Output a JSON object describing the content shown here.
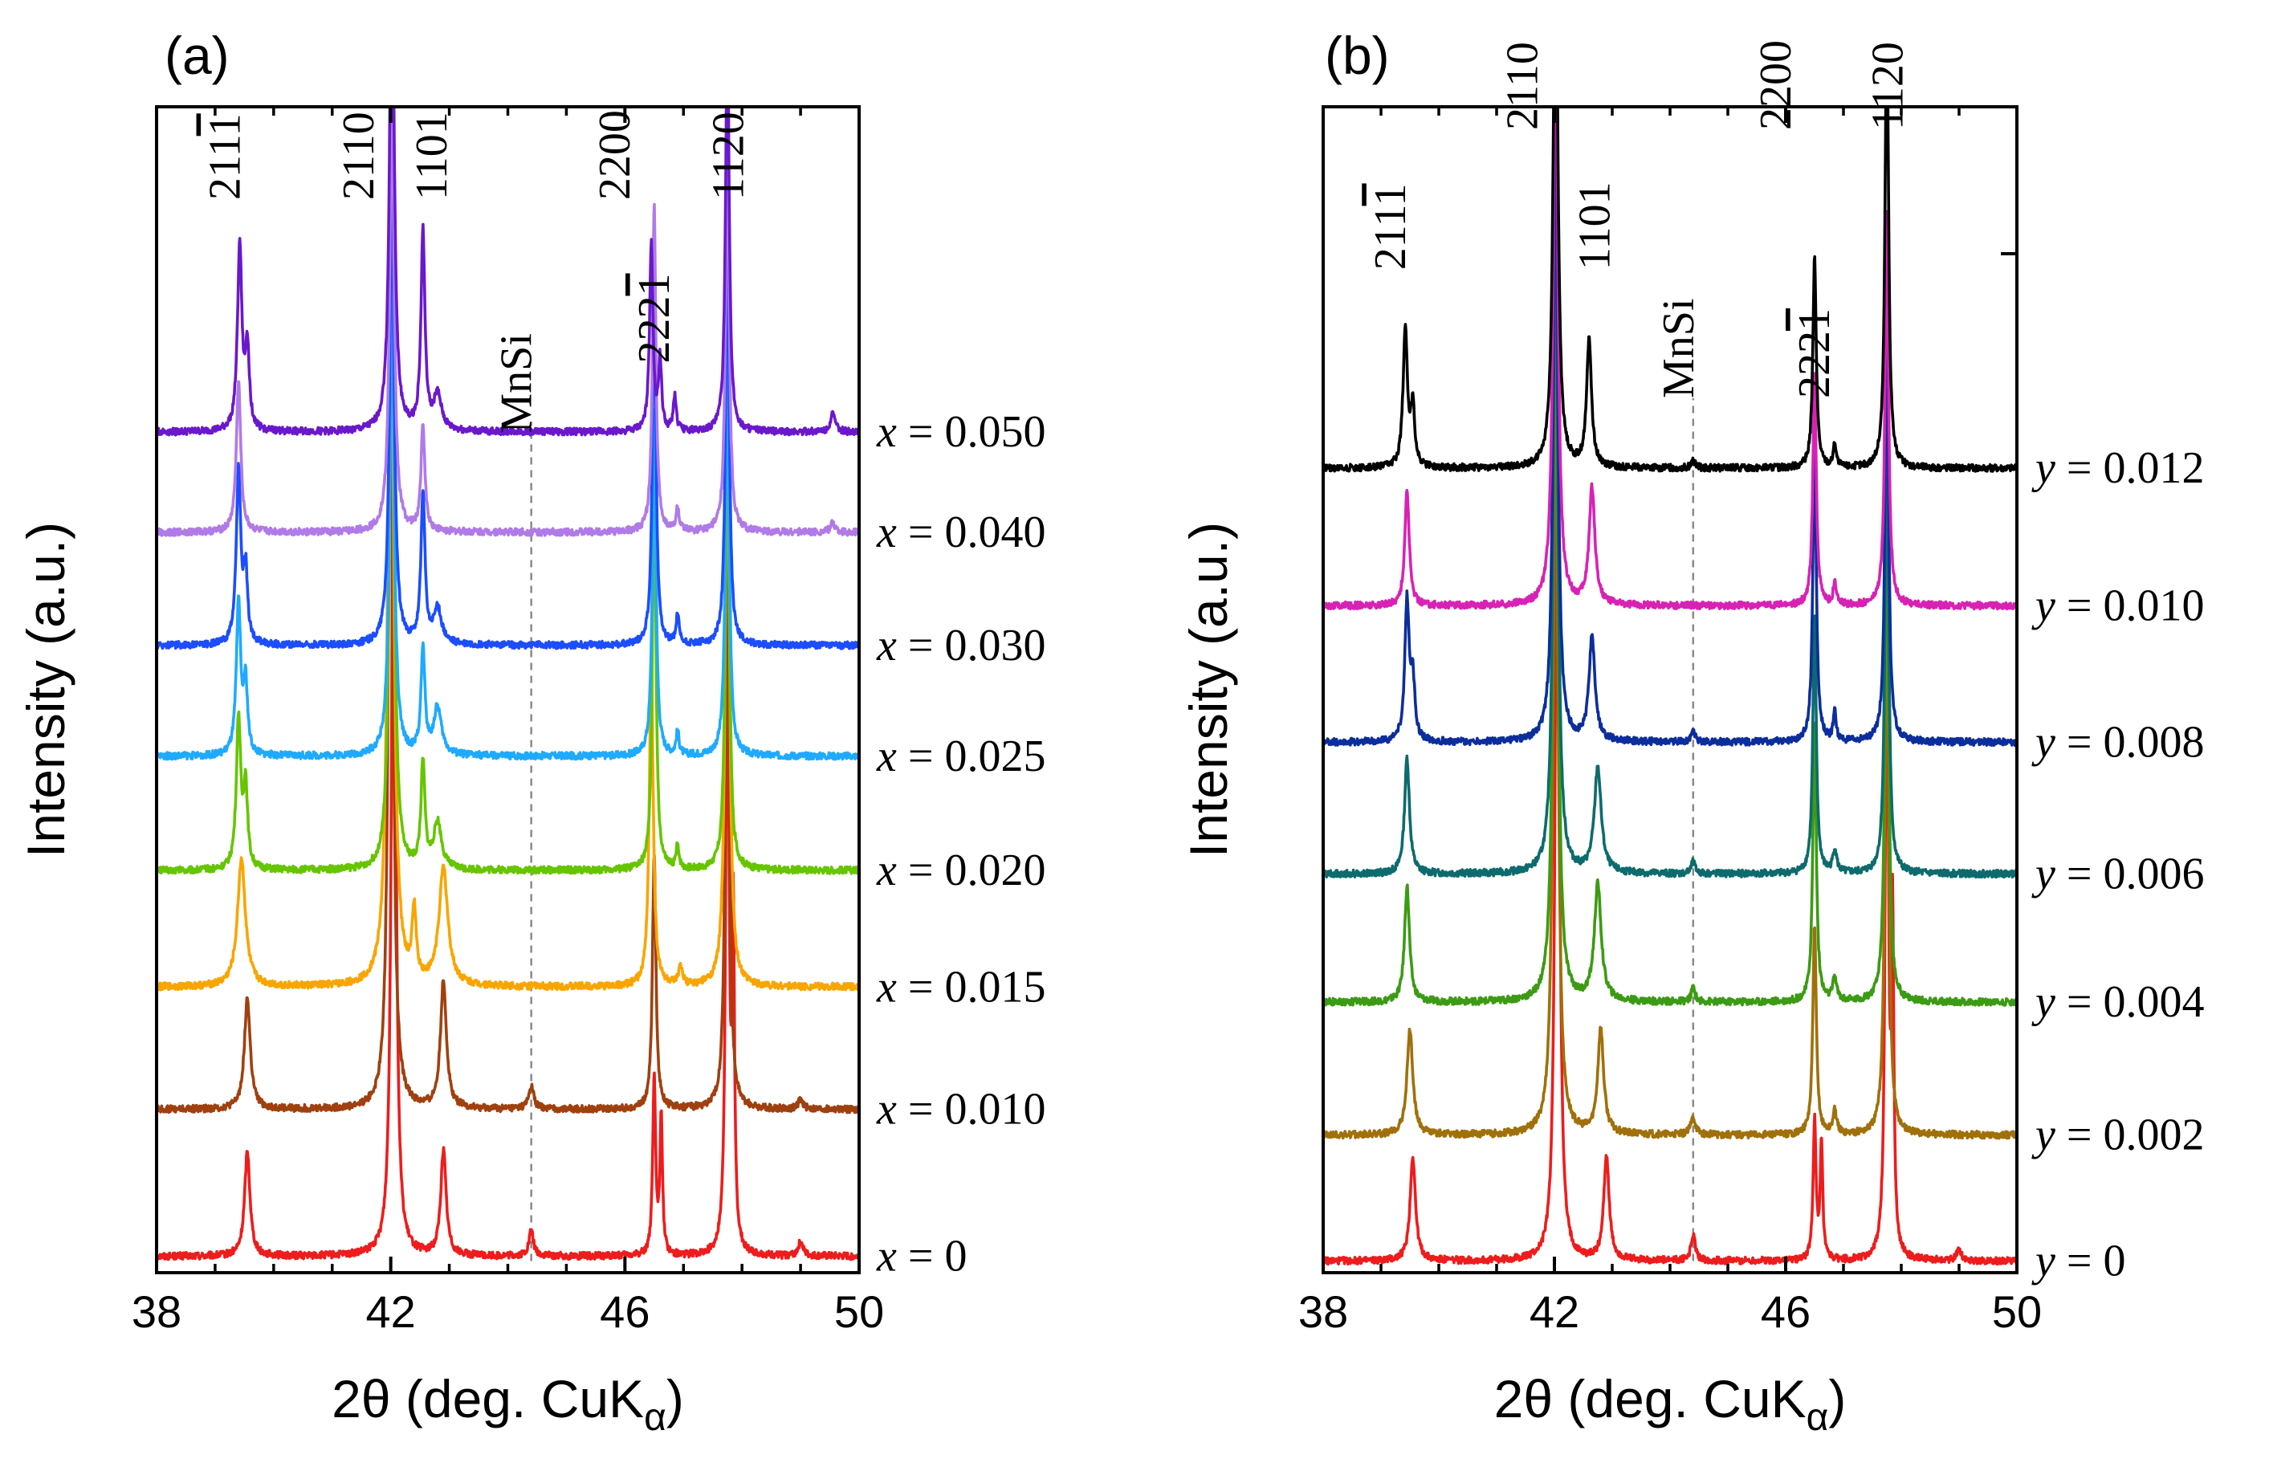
{
  "chart_data": [
    {
      "type": "line",
      "panel_label": "(a)",
      "xlabel": "2θ (deg. CuKα)",
      "xlabel_parts": {
        "main": "2θ (deg. CuK",
        "sub": "α",
        "close": ")"
      },
      "ylabel": "Intensity (a.u.)",
      "xlim": [
        38,
        50
      ],
      "ylim": [
        0,
        1
      ],
      "x_ticks": [
        38,
        42,
        46,
        50
      ],
      "x_minor_ticks": [
        39,
        40,
        41,
        43,
        44,
        45,
        47,
        48,
        49
      ],
      "series_variable": "x",
      "series": [
        {
          "name": "x = 0",
          "var": "x",
          "value": "0",
          "color": "#ee1c1c",
          "baseline": 0.014,
          "peaks": [
            [
              39.55,
              0.09,
              0.055
            ],
            [
              42.05,
              0.8,
              0.04
            ],
            [
              42.9,
              0.09,
              0.055
            ],
            [
              44.4,
              0.022,
              0.045
            ],
            [
              46.5,
              0.15,
              0.03
            ],
            [
              46.62,
              0.12,
              0.025
            ],
            [
              47.75,
              0.6,
              0.03
            ],
            [
              47.85,
              0.28,
              0.025
            ],
            [
              49.0,
              0.012,
              0.05
            ]
          ]
        },
        {
          "name": "x = 0.010",
          "var": "x",
          "value": "0.010",
          "color": "#a0400f",
          "baseline": 0.14,
          "peaks": [
            [
              39.55,
              0.095,
              0.06
            ],
            [
              42.0,
              0.74,
              0.045
            ],
            [
              42.9,
              0.11,
              0.06
            ],
            [
              44.4,
              0.02,
              0.05
            ],
            [
              46.5,
              0.22,
              0.035
            ],
            [
              47.75,
              0.58,
              0.035
            ],
            [
              49.0,
              0.008,
              0.05
            ]
          ]
        },
        {
          "name": "x = 0.015",
          "var": "x",
          "value": "0.015",
          "color": "#f9a500",
          "baseline": 0.245,
          "peaks": [
            [
              39.45,
              0.11,
              0.08
            ],
            [
              42.0,
              0.7,
              0.055
            ],
            [
              42.4,
              0.06,
              0.04
            ],
            [
              42.9,
              0.1,
              0.09
            ],
            [
              46.45,
              0.28,
              0.04
            ],
            [
              46.95,
              0.015,
              0.04
            ],
            [
              47.75,
              0.55,
              0.04
            ]
          ]
        },
        {
          "name": "x = 0.020",
          "var": "x",
          "value": "0.020",
          "color": "#66c500",
          "baseline": 0.345,
          "peaks": [
            [
              39.4,
              0.13,
              0.045
            ],
            [
              39.52,
              0.07,
              0.04
            ],
            [
              42.02,
              0.55,
              0.045
            ],
            [
              42.55,
              0.09,
              0.04
            ],
            [
              42.8,
              0.04,
              0.08
            ],
            [
              46.5,
              0.34,
              0.035
            ],
            [
              46.9,
              0.02,
              0.03
            ],
            [
              47.75,
              0.45,
              0.035
            ]
          ]
        },
        {
          "name": "x = 0.025",
          "var": "x",
          "value": "0.025",
          "color": "#1faaff",
          "baseline": 0.443,
          "peaks": [
            [
              39.4,
              0.13,
              0.045
            ],
            [
              39.52,
              0.06,
              0.04
            ],
            [
              42.02,
              0.4,
              0.045
            ],
            [
              42.55,
              0.09,
              0.04
            ],
            [
              42.8,
              0.04,
              0.08
            ],
            [
              46.5,
              0.3,
              0.035
            ],
            [
              46.9,
              0.02,
              0.03
            ],
            [
              47.75,
              0.38,
              0.035
            ]
          ]
        },
        {
          "name": "x = 0.030",
          "var": "x",
          "value": "0.030",
          "color": "#1c4dff",
          "baseline": 0.538,
          "peaks": [
            [
              39.4,
              0.15,
              0.045
            ],
            [
              39.52,
              0.06,
              0.04
            ],
            [
              42.02,
              0.4,
              0.045
            ],
            [
              42.55,
              0.13,
              0.04
            ],
            [
              42.8,
              0.03,
              0.08
            ],
            [
              46.5,
              0.32,
              0.035
            ],
            [
              46.9,
              0.025,
              0.03
            ],
            [
              47.75,
              0.38,
              0.035
            ]
          ]
        },
        {
          "name": "x = 0.040",
          "var": "x",
          "value": "0.040",
          "color": "#b07ae8",
          "baseline": 0.635,
          "peaks": [
            [
              39.4,
              0.13,
              0.045
            ],
            [
              42.02,
              0.38,
              0.045
            ],
            [
              42.55,
              0.09,
              0.04
            ],
            [
              46.5,
              0.28,
              0.035
            ],
            [
              46.9,
              0.02,
              0.03
            ],
            [
              47.75,
              0.36,
              0.035
            ],
            [
              49.55,
              0.008,
              0.05
            ]
          ]
        },
        {
          "name": "x = 0.050",
          "var": "x",
          "value": "0.050",
          "color": "#6a18cc",
          "baseline": 0.721,
          "peaks": [
            [
              39.42,
              0.16,
              0.045
            ],
            [
              39.55,
              0.07,
              0.04
            ],
            [
              42.02,
              0.45,
              0.045
            ],
            [
              42.55,
              0.17,
              0.04
            ],
            [
              42.8,
              0.03,
              0.08
            ],
            [
              46.45,
              0.16,
              0.035
            ],
            [
              46.6,
              0.06,
              0.03
            ],
            [
              46.85,
              0.03,
              0.03
            ],
            [
              47.75,
              0.36,
              0.035
            ],
            [
              49.55,
              0.015,
              0.05
            ]
          ]
        }
      ],
      "peak_labels": [
        {
          "text": "2111",
          "overline_digit": 3,
          "x": 39.42,
          "y": 0.92
        },
        {
          "text": "2110",
          "overline_digit": 0,
          "x": 41.7,
          "y": 0.92
        },
        {
          "text": "1101",
          "overline_digit": 0,
          "x": 42.95,
          "y": 0.92
        },
        {
          "text": "MnSi",
          "overline_digit": 0,
          "x": 44.4,
          "y": 0.72
        },
        {
          "text": "2200",
          "overline_digit": 0,
          "x": 46.08,
          "y": 0.92
        },
        {
          "text": "2221",
          "overline_digit": 3,
          "x": 46.75,
          "y": 0.78
        },
        {
          "text": "1120",
          "overline_digit": 0,
          "x": 48.02,
          "y": 0.92
        }
      ],
      "reference_line": {
        "x": 44.4,
        "style": "dashed",
        "from_y": 0.01,
        "to_y": 0.73
      }
    },
    {
      "type": "line",
      "panel_label": "(b)",
      "xlabel": "2θ (deg. CuKα)",
      "xlabel_parts": {
        "main": "2θ (deg. CuK",
        "sub": "α",
        "close": ")"
      },
      "ylabel": "Intensity (a.u.)",
      "xlim": [
        38,
        50
      ],
      "ylim": [
        0,
        1
      ],
      "x_ticks": [
        38,
        42,
        46,
        50
      ],
      "x_minor_ticks": [
        39,
        40,
        41,
        43,
        44,
        45,
        47,
        48,
        49
      ],
      "series_variable": "y",
      "series": [
        {
          "name": "y = 0",
          "var": "y",
          "value": "0",
          "color": "#ee1c1c",
          "baseline": 0.01,
          "peaks": [
            [
              39.55,
              0.09,
              0.055
            ],
            [
              42.05,
              0.8,
              0.04
            ],
            [
              42.9,
              0.09,
              0.055
            ],
            [
              44.4,
              0.022,
              0.045
            ],
            [
              46.5,
              0.12,
              0.03
            ],
            [
              46.62,
              0.1,
              0.025
            ],
            [
              47.75,
              0.6,
              0.03
            ],
            [
              47.85,
              0.28,
              0.025
            ],
            [
              49.0,
              0.01,
              0.05
            ]
          ]
        },
        {
          "name": "y = 0.002",
          "var": "y",
          "value": "0.002",
          "color": "#a0700a",
          "baseline": 0.118,
          "peaks": [
            [
              39.5,
              0.09,
              0.06
            ],
            [
              42.02,
              0.74,
              0.045
            ],
            [
              42.8,
              0.09,
              0.06
            ],
            [
              44.4,
              0.015,
              0.05
            ],
            [
              46.5,
              0.18,
              0.035
            ],
            [
              46.85,
              0.02,
              0.04
            ],
            [
              47.75,
              0.55,
              0.035
            ]
          ]
        },
        {
          "name": "y = 0.004",
          "var": "y",
          "value": "0.004",
          "color": "#3c9b14",
          "baseline": 0.232,
          "peaks": [
            [
              39.45,
              0.1,
              0.05
            ],
            [
              42.02,
              0.68,
              0.045
            ],
            [
              42.75,
              0.1,
              0.07
            ],
            [
              44.4,
              0.012,
              0.04
            ],
            [
              46.5,
              0.24,
              0.035
            ],
            [
              46.85,
              0.02,
              0.04
            ],
            [
              47.75,
              0.48,
              0.035
            ]
          ]
        },
        {
          "name": "y = 0.006",
          "var": "y",
          "value": "0.006",
          "color": "#0d6b6e",
          "baseline": 0.342,
          "peaks": [
            [
              39.45,
              0.1,
              0.05
            ],
            [
              42.02,
              0.62,
              0.045
            ],
            [
              42.75,
              0.09,
              0.07
            ],
            [
              44.4,
              0.01,
              0.04
            ],
            [
              46.5,
              0.22,
              0.035
            ],
            [
              46.85,
              0.02,
              0.04
            ],
            [
              47.75,
              0.42,
              0.035
            ]
          ]
        },
        {
          "name": "y = 0.008",
          "var": "y",
          "value": "0.008",
          "color": "#0c2e9c",
          "baseline": 0.455,
          "peaks": [
            [
              39.45,
              0.12,
              0.045
            ],
            [
              39.55,
              0.05,
              0.04
            ],
            [
              42.02,
              0.55,
              0.045
            ],
            [
              42.65,
              0.09,
              0.06
            ],
            [
              44.4,
              0.01,
              0.04
            ],
            [
              46.5,
              0.26,
              0.035
            ],
            [
              46.85,
              0.025,
              0.03
            ],
            [
              47.75,
              0.38,
              0.035
            ]
          ]
        },
        {
          "name": "y = 0.010",
          "var": "y",
          "value": "0.010",
          "color": "#d822b4",
          "baseline": 0.572,
          "peaks": [
            [
              39.45,
              0.1,
              0.045
            ],
            [
              42.02,
              0.55,
              0.045
            ],
            [
              42.65,
              0.1,
              0.06
            ],
            [
              46.5,
              0.2,
              0.035
            ],
            [
              46.85,
              0.02,
              0.03
            ],
            [
              47.75,
              0.34,
              0.035
            ]
          ]
        },
        {
          "name": "y = 0.012",
          "var": "y",
          "value": "0.012",
          "color": "#000000",
          "baseline": 0.69,
          "peaks": [
            [
              39.42,
              0.12,
              0.045
            ],
            [
              39.55,
              0.05,
              0.04
            ],
            [
              42.02,
              0.5,
              0.045
            ],
            [
              42.6,
              0.11,
              0.05
            ],
            [
              44.4,
              0.006,
              0.04
            ],
            [
              46.5,
              0.18,
              0.035
            ],
            [
              46.85,
              0.02,
              0.03
            ],
            [
              47.75,
              0.4,
              0.035
            ]
          ]
        }
      ],
      "peak_labels": [
        {
          "text": "2111",
          "overline_digit": 3,
          "x": 39.42,
          "y": 0.86
        },
        {
          "text": "2110",
          "overline_digit": 0,
          "x": 41.7,
          "y": 0.98
        },
        {
          "text": "1101",
          "overline_digit": 0,
          "x": 42.95,
          "y": 0.86
        },
        {
          "text": "MnSi",
          "overline_digit": 0,
          "x": 44.4,
          "y": 0.75
        },
        {
          "text": "2200",
          "overline_digit": 0,
          "x": 46.08,
          "y": 0.98
        },
        {
          "text": "2221",
          "overline_digit": 3,
          "x": 46.75,
          "y": 0.75
        },
        {
          "text": "1120",
          "overline_digit": 0,
          "x": 48.02,
          "y": 0.98
        }
      ],
      "reference_line": {
        "x": 44.4,
        "style": "dashed",
        "from_y": 0.01,
        "to_y": 0.75
      }
    }
  ]
}
